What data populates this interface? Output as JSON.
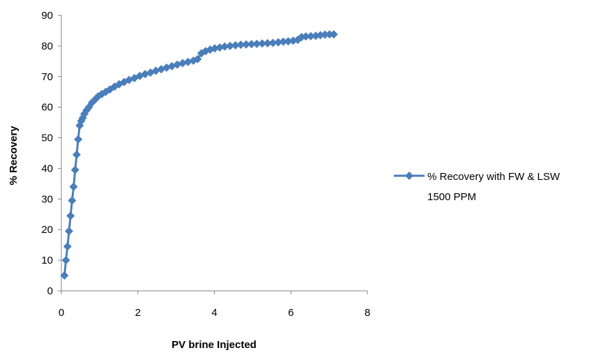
{
  "chart_data": {
    "type": "scatter",
    "title": "",
    "xlabel": "PV brine Injected",
    "ylabel": "% Recovery",
    "xlim": [
      0,
      8
    ],
    "ylim": [
      0,
      90
    ],
    "x_ticks": [
      0,
      2,
      4,
      6,
      8
    ],
    "y_ticks": [
      0,
      10,
      20,
      30,
      40,
      50,
      60,
      70,
      80,
      90
    ],
    "grid": false,
    "legend_position": "right",
    "series": [
      {
        "name": "% Recovery with FW & LSW 1500 PPM",
        "color": "#4a7ebb",
        "marker": "diamond",
        "line": true,
        "points": [
          [
            0.08,
            5.0
          ],
          [
            0.12,
            10.0
          ],
          [
            0.16,
            14.5
          ],
          [
            0.2,
            19.5
          ],
          [
            0.24,
            24.5
          ],
          [
            0.28,
            29.5
          ],
          [
            0.32,
            34.0
          ],
          [
            0.36,
            39.5
          ],
          [
            0.4,
            44.5
          ],
          [
            0.44,
            49.5
          ],
          [
            0.48,
            54.0
          ],
          [
            0.52,
            55.5
          ],
          [
            0.56,
            56.5
          ],
          [
            0.6,
            57.8
          ],
          [
            0.66,
            59.0
          ],
          [
            0.72,
            60.0
          ],
          [
            0.8,
            61.5
          ],
          [
            0.88,
            62.5
          ],
          [
            0.96,
            63.5
          ],
          [
            1.06,
            64.3
          ],
          [
            1.16,
            65.0
          ],
          [
            1.27,
            65.8
          ],
          [
            1.39,
            66.7
          ],
          [
            1.51,
            67.5
          ],
          [
            1.64,
            68.2
          ],
          [
            1.77,
            68.9
          ],
          [
            1.91,
            69.5
          ],
          [
            2.05,
            70.2
          ],
          [
            2.19,
            70.8
          ],
          [
            2.33,
            71.3
          ],
          [
            2.47,
            71.9
          ],
          [
            2.61,
            72.4
          ],
          [
            2.75,
            72.9
          ],
          [
            2.89,
            73.4
          ],
          [
            3.03,
            73.9
          ],
          [
            3.17,
            74.4
          ],
          [
            3.31,
            74.8
          ],
          [
            3.45,
            75.2
          ],
          [
            3.56,
            75.7
          ],
          [
            3.66,
            77.6
          ],
          [
            3.77,
            78.3
          ],
          [
            3.89,
            78.8
          ],
          [
            4.01,
            79.2
          ],
          [
            4.14,
            79.5
          ],
          [
            4.27,
            79.8
          ],
          [
            4.41,
            80.0
          ],
          [
            4.55,
            80.2
          ],
          [
            4.69,
            80.4
          ],
          [
            4.83,
            80.5
          ],
          [
            4.97,
            80.6
          ],
          [
            5.11,
            80.7
          ],
          [
            5.25,
            80.8
          ],
          [
            5.39,
            80.9
          ],
          [
            5.53,
            81.0
          ],
          [
            5.67,
            81.2
          ],
          [
            5.8,
            81.4
          ],
          [
            5.93,
            81.5
          ],
          [
            6.06,
            81.7
          ],
          [
            6.18,
            82.0
          ],
          [
            6.28,
            82.9
          ],
          [
            6.39,
            83.1
          ],
          [
            6.52,
            83.2
          ],
          [
            6.65,
            83.3
          ],
          [
            6.77,
            83.5
          ],
          [
            6.89,
            83.7
          ],
          [
            7.01,
            83.8
          ],
          [
            7.12,
            83.8
          ]
        ]
      }
    ]
  }
}
